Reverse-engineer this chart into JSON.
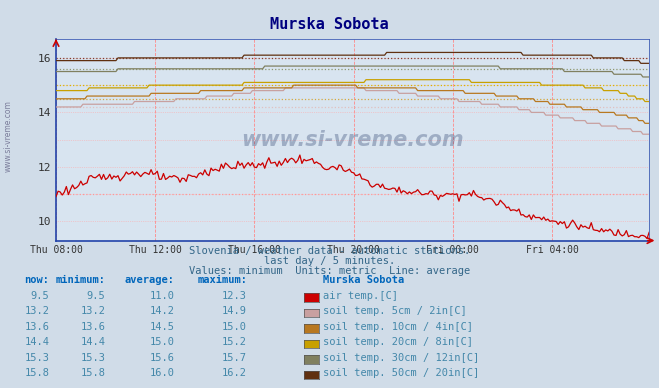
{
  "title": "Murska Sobota",
  "background_color": "#d0dce8",
  "plot_bg_color": "#d8e4f0",
  "title_color": "#000080",
  "xticklabels": [
    "Thu 08:00",
    "Thu 12:00",
    "Thu 16:00",
    "Thu 20:00",
    "Fri 00:00",
    "Fri 04:00"
  ],
  "yticks": [
    10,
    12,
    14,
    16
  ],
  "ylim": [
    9.3,
    16.7
  ],
  "xlim": [
    0,
    287
  ],
  "subtitle1": "Slovenia / weather data - automatic stations.",
  "subtitle2": "last day / 5 minutes.",
  "subtitle3": "Values: minimum  Units: metric  Line: average",
  "watermark": "www.si-vreme.com",
  "legend_header": "Murska Sobota",
  "series": [
    {
      "label": "air temp.[C]",
      "color": "#cc0000",
      "now": "9.5",
      "min": "9.5",
      "average": "11.0",
      "maximum": "12.3"
    },
    {
      "label": "soil temp. 5cm / 2in[C]",
      "color": "#c8a0a0",
      "now": "13.2",
      "min": "13.2",
      "average": "14.2",
      "maximum": "14.9"
    },
    {
      "label": "soil temp. 10cm / 4in[C]",
      "color": "#b87820",
      "now": "13.6",
      "min": "13.6",
      "average": "14.5",
      "maximum": "15.0"
    },
    {
      "label": "soil temp. 20cm / 8in[C]",
      "color": "#c8a000",
      "now": "14.4",
      "min": "14.4",
      "average": "15.0",
      "maximum": "15.2"
    },
    {
      "label": "soil temp. 30cm / 12in[C]",
      "color": "#808060",
      "now": "15.3",
      "min": "15.3",
      "average": "15.6",
      "maximum": "15.7"
    },
    {
      "label": "soil temp. 50cm / 20in[C]",
      "color": "#603010",
      "now": "15.8",
      "min": "15.8",
      "average": "16.0",
      "maximum": "16.2"
    }
  ],
  "swatch_colors": [
    "#cc0000",
    "#c8a0a0",
    "#b87820",
    "#c8a000",
    "#808060",
    "#603010"
  ],
  "table_header_color": "#0066bb",
  "table_text_color": "#4488aa",
  "avg_line_colors": [
    "#ff9999",
    "#e0c0c0",
    "#d4a840",
    "#d8b800",
    "#909870",
    "#804030"
  ],
  "grid_v_color": "#ff8888",
  "grid_h_color": "#ffaaaa"
}
